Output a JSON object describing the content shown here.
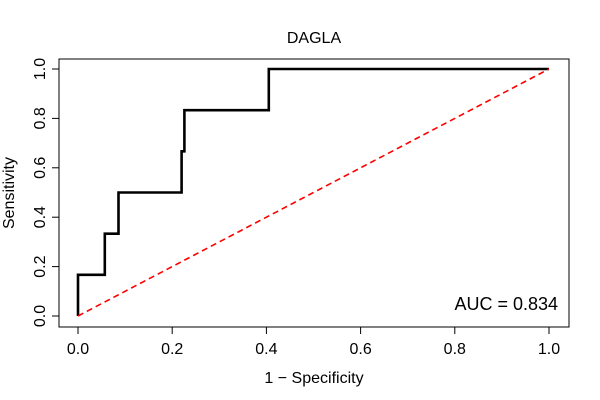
{
  "chart_data": {
    "type": "line",
    "title": "DAGLA",
    "xlabel": "1 − Specificity",
    "ylabel": "Sensitivity",
    "xlim": [
      0,
      1
    ],
    "ylim": [
      0,
      1
    ],
    "x_ticks": [
      "0.0",
      "0.2",
      "0.4",
      "0.6",
      "0.8",
      "1.0"
    ],
    "y_ticks": [
      "0.0",
      "0.2",
      "0.4",
      "0.6",
      "0.8",
      "1.0"
    ],
    "grid": false,
    "annotation": "AUC = 0.834",
    "colors": {
      "roc": "#000000",
      "reference": "#ff0000"
    },
    "series": [
      {
        "style": "solid",
        "x": [
          0,
          0,
          0.057,
          0.057,
          0.086,
          0.086,
          0.22,
          0.22,
          0.226,
          0.226,
          0.405,
          0.405,
          1.0
        ],
        "y": [
          0,
          0.167,
          0.167,
          0.333,
          0.333,
          0.5,
          0.5,
          0.667,
          0.667,
          0.833,
          0.833,
          1.0,
          1.0
        ]
      },
      {
        "style": "dashed",
        "x": [
          0,
          1
        ],
        "y": [
          0,
          1
        ]
      }
    ]
  }
}
